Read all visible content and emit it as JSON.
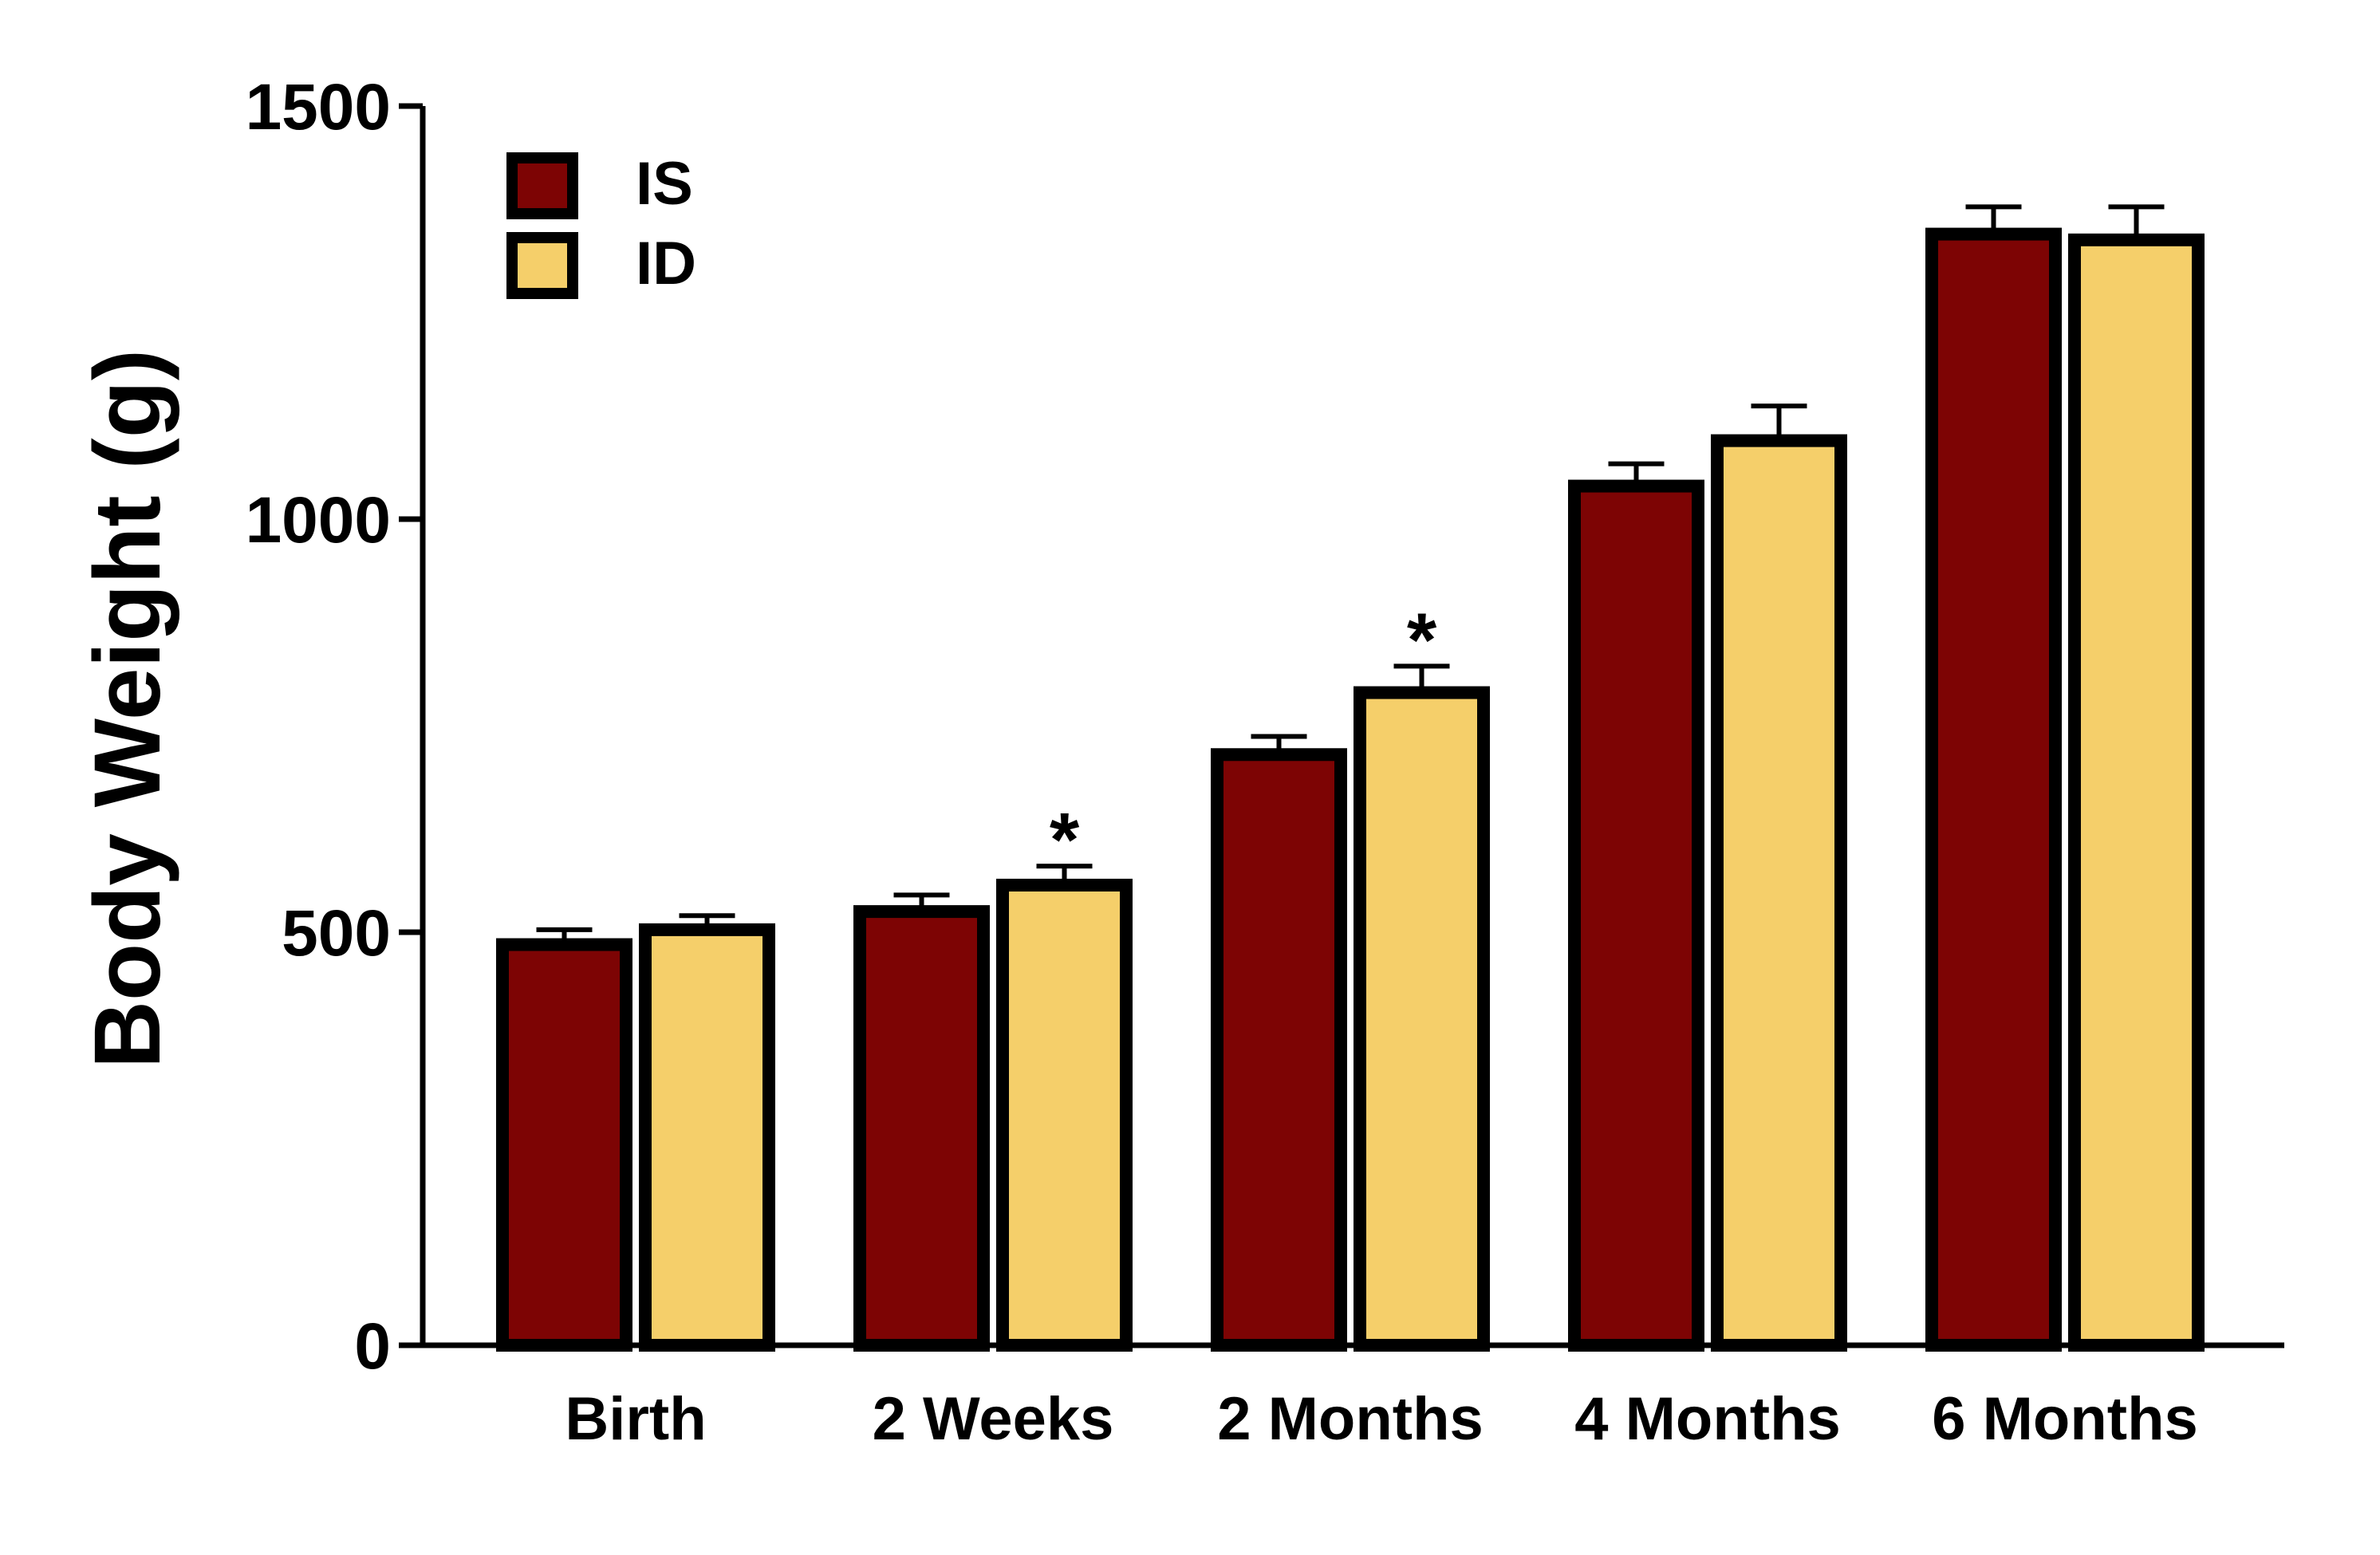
{
  "chart_data": {
    "type": "bar",
    "ylabel": "Body Weight (g)",
    "xlabel": "",
    "ylim": [
      0,
      1500
    ],
    "yticks": [
      0,
      500,
      1000,
      1500
    ],
    "categories": [
      "Birth",
      "2 Weeks",
      "2 Months",
      "4 Months",
      "6 Months"
    ],
    "series": [
      {
        "name": "IS",
        "color": "#7d0404",
        "values": [
          485,
          525,
          715,
          1040,
          1345
        ],
        "errors": [
          18,
          20,
          22,
          27,
          33
        ]
      },
      {
        "name": "ID",
        "color": "#f5cf6a",
        "values": [
          503,
          557,
          790,
          1095,
          1338
        ],
        "errors": [
          17,
          23,
          32,
          42,
          40
        ]
      }
    ],
    "annotations": [
      {
        "category": "2 Weeks",
        "series": "ID",
        "text": "*"
      },
      {
        "category": "2 Months",
        "series": "ID",
        "text": "*"
      }
    ],
    "legend": {
      "position": "top-left"
    },
    "grid": false
  }
}
